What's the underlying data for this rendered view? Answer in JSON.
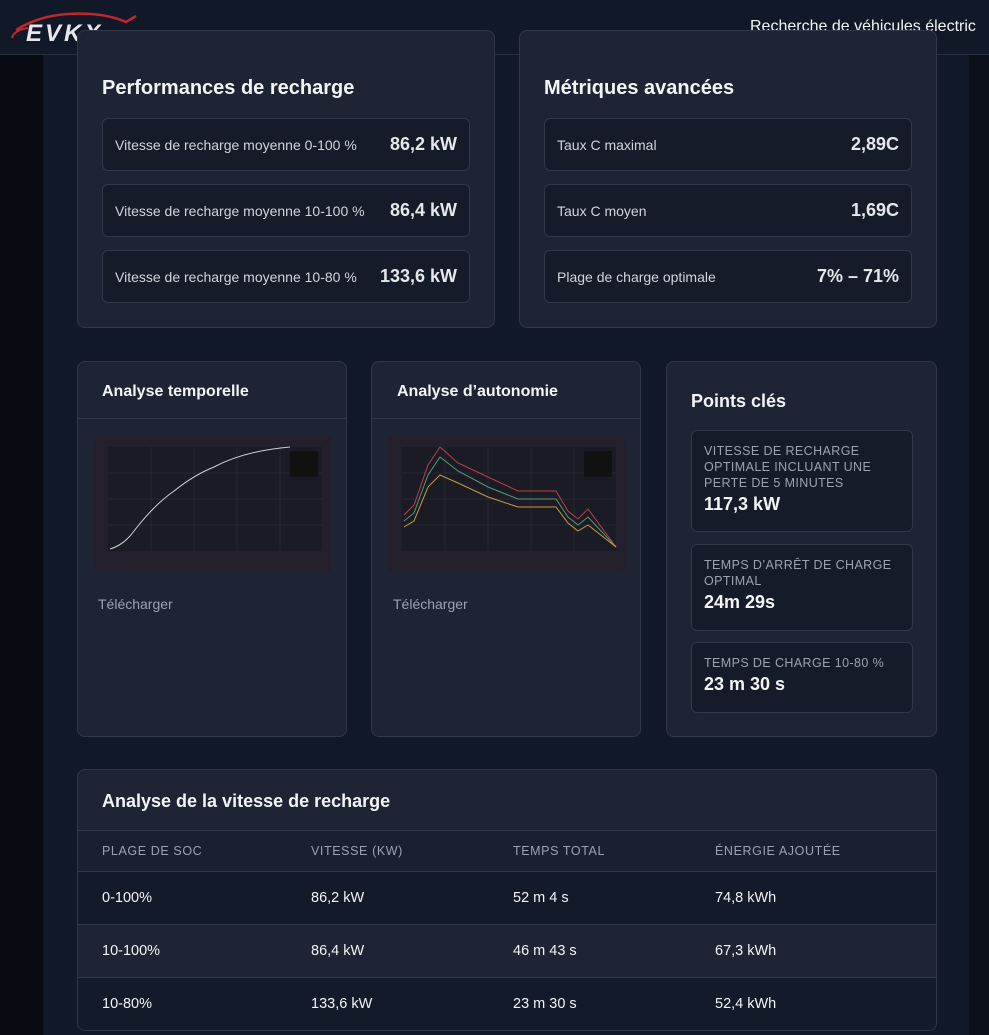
{
  "header": {
    "logo": "EVKX",
    "nav": "Recherche de véhicules électric"
  },
  "charging": {
    "title": "Performances de recharge",
    "items": [
      {
        "label": "Vitesse de recharge moyenne 0-100 %",
        "value": "86,2 kW"
      },
      {
        "label": "Vitesse de recharge moyenne 10-100 %",
        "value": "86,4 kW"
      },
      {
        "label": "Vitesse de recharge moyenne 10-80 %",
        "value": "133,6 kW"
      }
    ]
  },
  "metrics": {
    "title": "Métriques avancées",
    "items": [
      {
        "label": "Taux C maximal",
        "value": "2,89C"
      },
      {
        "label": "Taux C moyen",
        "value": "1,69C"
      },
      {
        "label": "Plage de charge optimale",
        "value": "7% – 71%"
      }
    ]
  },
  "charts": [
    {
      "title": "Analyse temporelle",
      "link": "Télécharger"
    },
    {
      "title": "Analyse d’autonomie",
      "link": "Télécharger"
    }
  ],
  "key_points": {
    "title": "Points clés",
    "items": [
      {
        "label": "VITESSE DE RECHARGE OPTIMALE INCLUANT UNE PERTE DE 5 MINUTES",
        "value": "117,3 kW"
      },
      {
        "label": "TEMPS D’ARRÊT DE CHARGE OPTIMAL",
        "value": "24m 29s"
      },
      {
        "label": "TEMPS DE CHARGE 10-80 %",
        "value": "23 m 30 s"
      }
    ]
  },
  "table": {
    "title": "Analyse de la vitesse de recharge",
    "columns": [
      "PLAGE DE SOC",
      "VITESSE (KW)",
      "TEMPS TOTAL",
      "ÉNERGIE AJOUTÉE"
    ],
    "rows": [
      [
        "0-100%",
        "86,2 kW",
        "52 m 4 s",
        "74,8 kWh"
      ],
      [
        "10-100%",
        "86,4 kW",
        "46 m 43 s",
        "67,3 kWh"
      ],
      [
        "10-80%",
        "133,6 kW",
        "23 m 30 s",
        "52,4 kWh"
      ]
    ]
  }
}
